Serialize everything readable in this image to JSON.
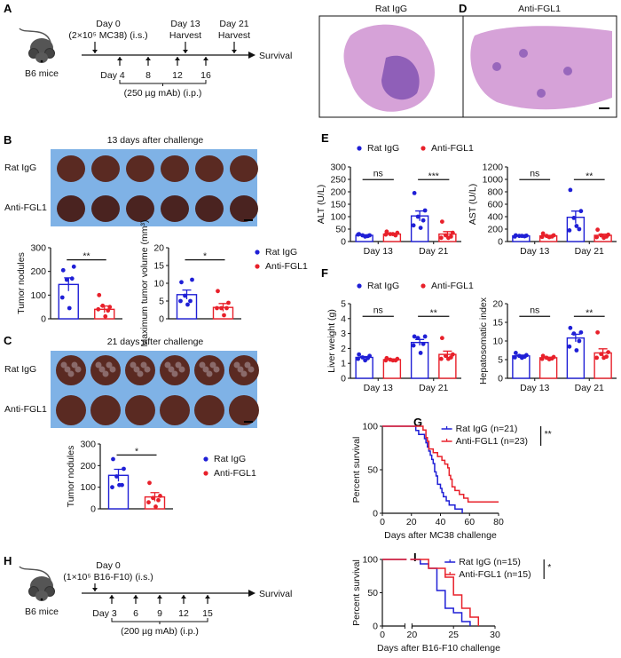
{
  "colors": {
    "rat_igg": "#1f1fd6",
    "anti_fgl1": "#e8202a",
    "photo_bg": "#7fb2e6",
    "liver": "#5a2a22",
    "histology": "#d6a2d8",
    "tumor": "#7d4fb0"
  },
  "panel_labels": [
    "A",
    "B",
    "C",
    "D",
    "E",
    "F",
    "G",
    "H",
    "I"
  ],
  "schematic_A": {
    "mouse": "B6 mice",
    "day0": "Day 0",
    "inoculation": "(2×10⁵ MC38) (i.s.)",
    "harvest1_day": "Day 13",
    "harvest1": "Harvest",
    "harvest2_day": "Day 21",
    "harvest2": "Harvest",
    "endpoint": "Survival",
    "dose_days": [
      "Day 4",
      "8",
      "12",
      "16"
    ],
    "dose": "(250 µg mAb) (i.p.)"
  },
  "schematic_H": {
    "mouse": "B6 mice",
    "day0": "Day 0",
    "inoculation": "(1×10⁵ B16-F10) (i.s.)",
    "endpoint": "Survival",
    "dose_days": [
      "Day 3",
      "6",
      "9",
      "12",
      "15"
    ],
    "dose": "(200 µg mAb) (i.p.)"
  },
  "photo_B": {
    "title": "13 days after challenge",
    "rows": [
      "Rat IgG",
      "Anti-FGL1"
    ]
  },
  "photo_C": {
    "title": "21 days after challenge",
    "rows": [
      "Rat IgG",
      "Anti-FGL1"
    ]
  },
  "histology_D": {
    "columns": [
      "Rat IgG",
      "Anti-FGL1"
    ]
  },
  "legend": [
    "Rat IgG",
    "Anti-FGL1"
  ],
  "chart_data": [
    {
      "id": "B1",
      "type": "bar",
      "ylabel": "Tumor nodules",
      "ylim": [
        0,
        300
      ],
      "yticks": [
        0,
        100,
        200,
        300
      ],
      "groups": [
        {
          "label": "",
          "sig": "**",
          "bars": [
            {
              "series": "Rat IgG",
              "mean": 145,
              "sem": 28,
              "points": [
                205,
                220,
                165,
                170,
                90,
                45
              ]
            },
            {
              "series": "Anti-FGL1",
              "mean": 40,
              "sem": 14,
              "points": [
                100,
                50,
                55,
                35,
                40,
                10
              ]
            }
          ]
        }
      ]
    },
    {
      "id": "B2",
      "type": "bar",
      "ylabel": "Maximum tumor volume (mm³)",
      "ylim": [
        0,
        20
      ],
      "yticks": [
        0,
        5,
        10,
        15,
        20
      ],
      "groups": [
        {
          "label": "",
          "sig": "*",
          "bars": [
            {
              "series": "Rat IgG",
              "mean": 6.8,
              "sem": 1.3,
              "points": [
                10.3,
                11,
                6.5,
                5,
                5,
                4
              ]
            },
            {
              "series": "Anti-FGL1",
              "mean": 3.2,
              "sem": 1.1,
              "points": [
                7.8,
                4.5,
                3,
                3,
                3,
                1
              ]
            }
          ]
        }
      ]
    },
    {
      "id": "C1",
      "type": "bar",
      "ylabel": "Tumor nodules",
      "ylim": [
        0,
        300
      ],
      "yticks": [
        0,
        100,
        200,
        300
      ],
      "groups": [
        {
          "label": "",
          "sig": "*",
          "bars": [
            {
              "series": "Rat IgG",
              "mean": 155,
              "sem": 28,
              "points": [
                230,
                185,
                150,
                110,
                100,
                110
              ]
            },
            {
              "series": "Anti-FGL1",
              "mean": 55,
              "sem": 20,
              "points": [
                120,
                60,
                50,
                40,
                30,
                10
              ]
            }
          ]
        }
      ]
    },
    {
      "id": "E1",
      "type": "bar",
      "ylabel": "ALT (U/L)",
      "ylim": [
        0,
        300
      ],
      "yticks": [
        0,
        50,
        100,
        150,
        200,
        250,
        300
      ],
      "groups": [
        {
          "label": "Day 13",
          "sig": "ns",
          "bars": [
            {
              "series": "Rat IgG",
              "mean": 25,
              "sem": 2,
              "points": [
                30,
                25,
                25,
                22,
                28,
                20
              ]
            },
            {
              "series": "Anti-FGL1",
              "mean": 30,
              "sem": 3,
              "points": [
                40,
                35,
                30,
                25,
                28,
                30
              ]
            }
          ]
        },
        {
          "label": "Day 21",
          "sig": "***",
          "bars": [
            {
              "series": "Rat IgG",
              "mean": 103,
              "sem": 20,
              "points": [
                195,
                125,
                100,
                85,
                65,
                55
              ]
            },
            {
              "series": "Anti-FGL1",
              "mean": 30,
              "sem": 10,
              "points": [
                80,
                35,
                25,
                20,
                15,
                15
              ]
            }
          ]
        }
      ]
    },
    {
      "id": "E2",
      "type": "bar",
      "ylabel": "AST (U/L)",
      "ylim": [
        0,
        1200
      ],
      "yticks": [
        0,
        200,
        400,
        600,
        800,
        1000,
        1200
      ],
      "groups": [
        {
          "label": "Day 13",
          "sig": "ns",
          "bars": [
            {
              "series": "Rat IgG",
              "mean": 90,
              "sem": 8,
              "points": [
                100,
                95,
                90,
                85,
                80,
                90
              ]
            },
            {
              "series": "Anti-FGL1",
              "mean": 90,
              "sem": 10,
              "points": [
                130,
                100,
                90,
                80,
                75,
                70
              ]
            }
          ]
        },
        {
          "label": "Day 21",
          "sig": "**",
          "bars": [
            {
              "series": "Rat IgG",
              "mean": 390,
              "sem": 100,
              "points": [
                830,
                490,
                380,
                200,
                180,
                250
              ]
            },
            {
              "series": "Anti-FGL1",
              "mean": 100,
              "sem": 20,
              "points": [
                190,
                110,
                100,
                80,
                70,
                60
              ]
            }
          ]
        }
      ]
    },
    {
      "id": "F1",
      "type": "bar",
      "ylabel": "Liver weight (g)",
      "ylim": [
        0,
        5
      ],
      "yticks": [
        0,
        1,
        2,
        3,
        4,
        5
      ],
      "groups": [
        {
          "label": "Day 13",
          "sig": "ns",
          "bars": [
            {
              "series": "Rat IgG",
              "mean": 1.4,
              "sem": 0.06,
              "points": [
                1.6,
                1.5,
                1.4,
                1.35,
                1.3,
                1.2
              ]
            },
            {
              "series": "Anti-FGL1",
              "mean": 1.25,
              "sem": 0.04,
              "points": [
                1.35,
                1.3,
                1.25,
                1.2,
                1.2,
                1.2
              ]
            }
          ]
        },
        {
          "label": "Day 21",
          "sig": "**",
          "bars": [
            {
              "series": "Rat IgG",
              "mean": 2.4,
              "sem": 0.2,
              "points": [
                2.8,
                2.8,
                2.7,
                2.3,
                2.2,
                1.7
              ]
            },
            {
              "series": "Anti-FGL1",
              "mean": 1.6,
              "sem": 0.22,
              "points": [
                2.7,
                1.6,
                1.5,
                1.4,
                1.3,
                1.3
              ]
            }
          ]
        }
      ]
    },
    {
      "id": "F2",
      "type": "bar",
      "ylabel": "Hepatosomatic index",
      "ylim": [
        0,
        20
      ],
      "yticks": [
        0,
        5,
        10,
        15,
        20
      ],
      "groups": [
        {
          "label": "Day 13",
          "sig": "ns",
          "bars": [
            {
              "series": "Rat IgG",
              "mean": 6,
              "sem": 0.2,
              "points": [
                6.8,
                6.2,
                6,
                5.8,
                5.6,
                5.5
              ]
            },
            {
              "series": "Anti-FGL1",
              "mean": 5.5,
              "sem": 0.15,
              "points": [
                6,
                5.7,
                5.5,
                5.3,
                5.2,
                5.1
              ]
            }
          ]
        },
        {
          "label": "Day 21",
          "sig": "**",
          "bars": [
            {
              "series": "Rat IgG",
              "mean": 10.8,
              "sem": 1,
              "points": [
                13.5,
                12.3,
                12,
                10,
                8.5,
                7.5
              ]
            },
            {
              "series": "Anti-FGL1",
              "mean": 6.8,
              "sem": 1.1,
              "points": [
                12.3,
                7,
                6.5,
                5.8,
                5.5,
                5.5
              ]
            }
          ]
        }
      ]
    },
    {
      "id": "G",
      "type": "line",
      "subtype": "kaplan-meier",
      "xlabel": "Days after MC38 challenge",
      "ylabel": "Percent survival",
      "xlim": [
        0,
        80
      ],
      "xticks": [
        0,
        20,
        40,
        60,
        80
      ],
      "ylim": [
        0,
        100
      ],
      "yticks": [
        0,
        50,
        100
      ],
      "sig": "**",
      "series": [
        {
          "name": "Rat IgG (n=21)",
          "steps": [
            [
              0,
              100
            ],
            [
              23,
              95.2
            ],
            [
              25,
              90.5
            ],
            [
              29,
              85.7
            ],
            [
              30,
              81
            ],
            [
              31,
              76.2
            ],
            [
              32,
              71.4
            ],
            [
              33,
              66.7
            ],
            [
              34,
              61.9
            ],
            [
              35,
              57.1
            ],
            [
              36,
              47.6
            ],
            [
              37,
              42.9
            ],
            [
              38,
              33.3
            ],
            [
              40,
              28.6
            ],
            [
              41,
              23.8
            ],
            [
              42,
              19
            ],
            [
              44,
              14.3
            ],
            [
              46,
              9.5
            ],
            [
              50,
              4.8
            ],
            [
              55,
              0
            ]
          ]
        },
        {
          "name": "Anti-FGL1 (n=23)",
          "steps": [
            [
              0,
              100
            ],
            [
              28,
              95.7
            ],
            [
              30,
              87
            ],
            [
              31,
              82.6
            ],
            [
              32,
              73.9
            ],
            [
              35,
              69.6
            ],
            [
              38,
              65.2
            ],
            [
              41,
              60.9
            ],
            [
              43,
              56.5
            ],
            [
              45,
              52.2
            ],
            [
              46,
              43.5
            ],
            [
              47,
              39.1
            ],
            [
              48,
              30.4
            ],
            [
              50,
              26.1
            ],
            [
              53,
              21.7
            ],
            [
              56,
              17.4
            ],
            [
              59,
              13
            ],
            [
              80,
              13
            ]
          ]
        }
      ]
    },
    {
      "id": "I",
      "type": "line",
      "subtype": "kaplan-meier",
      "xlabel": "Days after B16-F10 challenge",
      "ylabel": "Percent survival",
      "xlim": [
        0,
        30
      ],
      "xbreak": [
        10,
        20
      ],
      "xticks": [
        0,
        20,
        25,
        30
      ],
      "ylim": [
        0,
        100
      ],
      "yticks": [
        0,
        50,
        100
      ],
      "sig": "*",
      "series": [
        {
          "name": "Rat IgG (n=15)",
          "steps": [
            [
              0,
              100
            ],
            [
              21,
              93.3
            ],
            [
              22,
              86.7
            ],
            [
              23,
              53.3
            ],
            [
              24,
              26.7
            ],
            [
              25,
              20
            ],
            [
              26,
              6.7
            ],
            [
              27,
              0
            ]
          ]
        },
        {
          "name": "Anti-FGL1 (n=15)",
          "steps": [
            [
              0,
              100
            ],
            [
              22,
              86.7
            ],
            [
              24,
              73.3
            ],
            [
              25,
              46.7
            ],
            [
              26,
              26.7
            ],
            [
              27,
              13.3
            ],
            [
              28,
              0
            ]
          ]
        }
      ]
    }
  ]
}
